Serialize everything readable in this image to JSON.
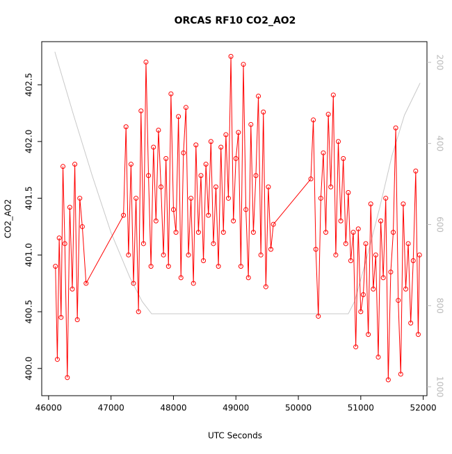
{
  "chart_data": {
    "type": "line",
    "title": "ORCAS RF10 CO2_AO2",
    "x_label": "UTC Seconds",
    "y_label": "CO2_AO2",
    "xlim": [
      45890,
      52060
    ],
    "xticks": [
      46000,
      47000,
      48000,
      49000,
      50000,
      51000,
      52000
    ],
    "ylim": [
      399.76,
      402.88
    ],
    "yticks": [
      {
        "value": 400,
        "label": "400.0"
      },
      400.5,
      {
        "value": 401,
        "label": "401.0"
      },
      401.5,
      {
        "value": 402,
        "label": "402.0"
      },
      402.5
    ],
    "y2lim": [
      1022,
      149
    ],
    "y2ticks": [
      200,
      400,
      600,
      800,
      1000
    ],
    "series": [
      {
        "color": "#c8c8c8",
        "axis": "y2",
        "marker": "none",
        "x": [
          46100,
          46400,
          46700,
          47000,
          47300,
          47500,
          47650,
          50800,
          50900,
          51100,
          51300,
          51500,
          51700,
          51950
        ],
        "values": [
          174,
          330,
          480,
          620,
          730,
          790,
          820,
          820,
          790,
          680,
          560,
          430,
          330,
          251
        ]
      },
      {
        "color": "#ff0000",
        "axis": "y",
        "marker": "circle",
        "x": [
          46110,
          46140,
          46170,
          46200,
          46230,
          46260,
          46300,
          46340,
          46380,
          46420,
          46460,
          46500,
          46540,
          46600,
          47200,
          47240,
          47280,
          47320,
          47360,
          47400,
          47440,
          47480,
          47520,
          47560,
          47600,
          47640,
          47680,
          47720,
          47760,
          47800,
          47840,
          47880,
          47920,
          47960,
          48000,
          48040,
          48080,
          48120,
          48160,
          48200,
          48240,
          48280,
          48320,
          48360,
          48400,
          48440,
          48480,
          48520,
          48560,
          48600,
          48640,
          48680,
          48720,
          48760,
          48800,
          48840,
          48880,
          48920,
          48960,
          49000,
          49040,
          49080,
          49120,
          49160,
          49200,
          49240,
          49280,
          49320,
          49360,
          49400,
          49440,
          49480,
          49520,
          49560,
          49600,
          50200,
          50240,
          50280,
          50320,
          50360,
          50400,
          50440,
          50480,
          50520,
          50560,
          50600,
          50640,
          50680,
          50720,
          50760,
          50800,
          50840,
          50880,
          50920,
          50960,
          51000,
          51040,
          51080,
          51120,
          51160,
          51200,
          51240,
          51280,
          51320,
          51360,
          51400,
          51440,
          51480,
          51520,
          51560,
          51600,
          51640,
          51680,
          51720,
          51760,
          51800,
          51840,
          51880,
          51920,
          51940
        ],
        "values": [
          400.9,
          400.08,
          401.15,
          400.45,
          401.78,
          401.1,
          399.92,
          401.42,
          400.7,
          401.8,
          400.43,
          401.5,
          401.25,
          400.75,
          401.35,
          402.13,
          401.0,
          401.8,
          400.75,
          401.5,
          400.5,
          402.27,
          401.1,
          402.7,
          401.7,
          400.9,
          401.95,
          401.3,
          402.1,
          401.6,
          401.0,
          401.85,
          400.9,
          402.42,
          401.4,
          401.2,
          402.22,
          400.8,
          401.9,
          402.3,
          401.0,
          401.5,
          400.75,
          401.97,
          401.2,
          401.7,
          400.95,
          401.8,
          401.35,
          402.0,
          401.1,
          401.6,
          400.9,
          401.95,
          401.2,
          402.06,
          401.5,
          402.75,
          401.3,
          401.85,
          402.08,
          400.9,
          402.68,
          401.4,
          400.8,
          402.15,
          401.2,
          401.7,
          402.4,
          401.0,
          402.26,
          400.72,
          401.6,
          401.05,
          401.27,
          401.67,
          402.19,
          401.05,
          400.46,
          401.5,
          401.9,
          401.2,
          402.24,
          401.6,
          402.41,
          401.0,
          402.0,
          401.3,
          401.85,
          401.1,
          401.55,
          400.95,
          401.2,
          400.19,
          401.23,
          400.5,
          400.65,
          401.1,
          400.3,
          401.45,
          400.7,
          401.0,
          400.1,
          401.3,
          400.8,
          401.5,
          399.9,
          400.85,
          401.2,
          402.12,
          400.6,
          399.95,
          401.45,
          400.7,
          401.1,
          400.4,
          400.95,
          401.74,
          400.3,
          401.0
        ]
      }
    ]
  }
}
